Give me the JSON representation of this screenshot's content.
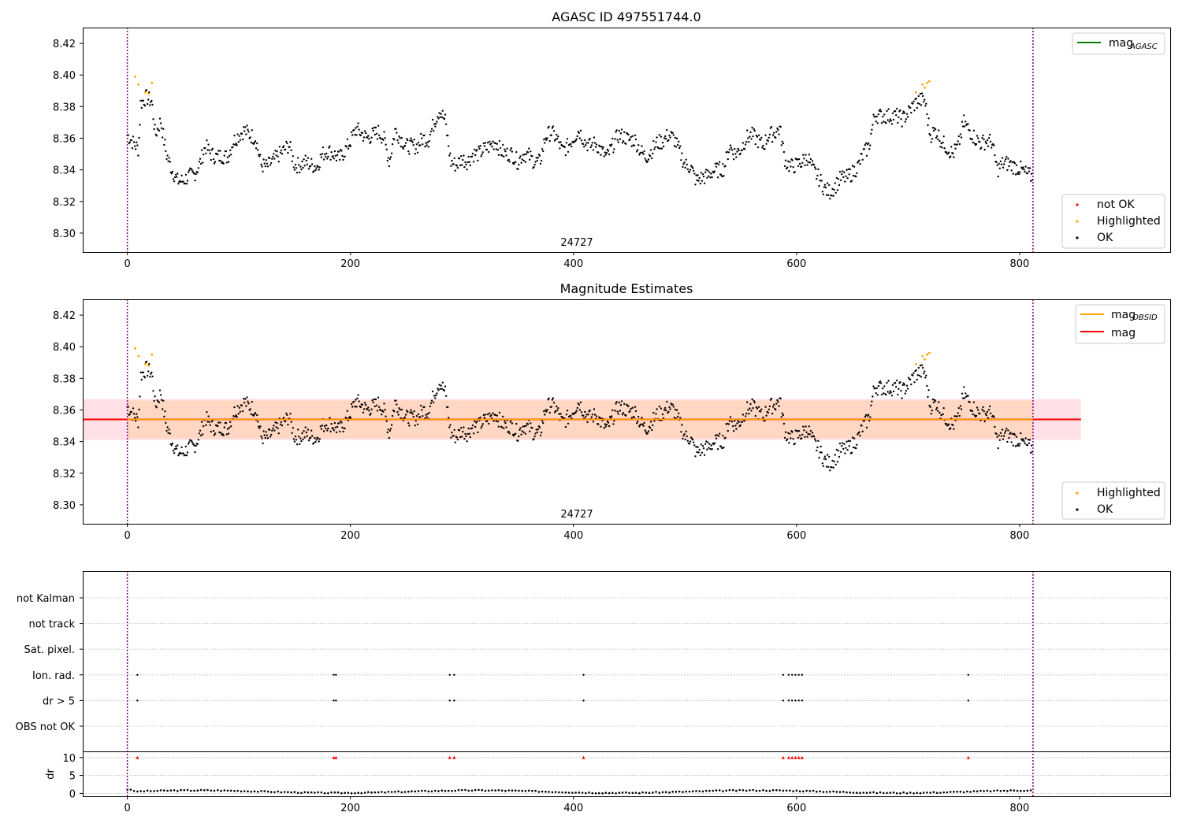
{
  "chart_data": [
    {
      "type": "scatter",
      "title": "AGASC ID 497551744.0",
      "xlim": [
        -40,
        935
      ],
      "ylim": [
        8.288,
        8.43
      ],
      "xticks": [
        0,
        200,
        400,
        600,
        800
      ],
      "yticks": [
        8.3,
        8.32,
        8.34,
        8.36,
        8.38,
        8.4,
        8.42
      ],
      "vlines": [
        0,
        812
      ],
      "annotations": [
        {
          "text": "24727",
          "x": 406
        }
      ],
      "legend_lines": [
        {
          "name": "mag",
          "sub": "AGASC",
          "color": "#008000"
        }
      ],
      "legend_points": [
        {
          "name": "not OK",
          "color": "#ff0000"
        },
        {
          "name": "Highlighted",
          "color": "#ffa500"
        },
        {
          "name": "OK",
          "color": "#000000"
        }
      ],
      "highlighted": [
        [
          7,
          8.399
        ],
        [
          10,
          8.394
        ],
        [
          16,
          8.389
        ],
        [
          19,
          8.388
        ],
        [
          22,
          8.395
        ],
        [
          707,
          8.389
        ],
        [
          713,
          8.394
        ],
        [
          715,
          8.392
        ],
        [
          717,
          8.395
        ],
        [
          719,
          8.396
        ]
      ],
      "ok_series": [
        [
          0,
          8.362
        ],
        [
          10,
          8.353
        ],
        [
          12,
          8.382
        ],
        [
          17,
          8.386
        ],
        [
          22,
          8.383
        ],
        [
          25,
          8.362
        ],
        [
          30,
          8.371
        ],
        [
          35,
          8.35
        ],
        [
          40,
          8.34
        ],
        [
          45,
          8.333
        ],
        [
          50,
          8.333
        ],
        [
          55,
          8.336
        ],
        [
          60,
          8.337
        ],
        [
          65,
          8.344
        ],
        [
          70,
          8.355
        ],
        [
          75,
          8.35
        ],
        [
          80,
          8.348
        ],
        [
          85,
          8.349
        ],
        [
          90,
          8.348
        ],
        [
          95,
          8.358
        ],
        [
          100,
          8.362
        ],
        [
          105,
          8.365
        ],
        [
          110,
          8.362
        ],
        [
          115,
          8.36
        ],
        [
          120,
          8.343
        ],
        [
          125,
          8.342
        ],
        [
          130,
          8.345
        ],
        [
          135,
          8.349
        ],
        [
          140,
          8.352
        ],
        [
          145,
          8.356
        ],
        [
          150,
          8.343
        ],
        [
          155,
          8.343
        ],
        [
          160,
          8.345
        ],
        [
          165,
          8.343
        ],
        [
          170,
          8.342
        ],
        [
          175,
          8.35
        ],
        [
          180,
          8.352
        ],
        [
          185,
          8.35
        ],
        [
          190,
          8.347
        ],
        [
          195,
          8.352
        ],
        [
          200,
          8.358
        ],
        [
          205,
          8.366
        ],
        [
          210,
          8.363
        ],
        [
          215,
          8.36
        ],
        [
          220,
          8.362
        ],
        [
          225,
          8.364
        ],
        [
          230,
          8.36
        ],
        [
          235,
          8.345
        ],
        [
          240,
          8.365
        ],
        [
          245,
          8.36
        ],
        [
          250,
          8.355
        ],
        [
          255,
          8.355
        ],
        [
          260,
          8.355
        ],
        [
          265,
          8.36
        ],
        [
          270,
          8.359
        ],
        [
          275,
          8.37
        ],
        [
          280,
          8.378
        ],
        [
          285,
          8.371
        ],
        [
          290,
          8.345
        ],
        [
          295,
          8.343
        ],
        [
          300,
          8.347
        ],
        [
          305,
          8.345
        ],
        [
          310,
          8.35
        ],
        [
          315,
          8.35
        ],
        [
          320,
          8.353
        ],
        [
          325,
          8.355
        ],
        [
          330,
          8.358
        ],
        [
          335,
          8.352
        ],
        [
          340,
          8.35
        ],
        [
          345,
          8.35
        ],
        [
          350,
          8.345
        ],
        [
          355,
          8.35
        ],
        [
          360,
          8.349
        ],
        [
          365,
          8.345
        ],
        [
          370,
          8.345
        ],
        [
          375,
          8.361
        ],
        [
          380,
          8.364
        ],
        [
          385,
          8.36
        ],
        [
          390,
          8.352
        ],
        [
          395,
          8.355
        ],
        [
          400,
          8.36
        ],
        [
          405,
          8.365
        ],
        [
          410,
          8.358
        ],
        [
          415,
          8.355
        ],
        [
          420,
          8.357
        ],
        [
          425,
          8.352
        ],
        [
          430,
          8.348
        ],
        [
          435,
          8.355
        ],
        [
          440,
          8.362
        ],
        [
          445,
          8.361
        ],
        [
          450,
          8.359
        ],
        [
          455,
          8.359
        ],
        [
          460,
          8.352
        ],
        [
          465,
          8.348
        ],
        [
          470,
          8.352
        ],
        [
          475,
          8.357
        ],
        [
          480,
          8.358
        ],
        [
          485,
          8.362
        ],
        [
          490,
          8.36
        ],
        [
          495,
          8.352
        ],
        [
          500,
          8.343
        ],
        [
          505,
          8.342
        ],
        [
          510,
          8.333
        ],
        [
          515,
          8.335
        ],
        [
          520,
          8.336
        ],
        [
          525,
          8.339
        ],
        [
          530,
          8.34
        ],
        [
          535,
          8.341
        ],
        [
          540,
          8.355
        ],
        [
          545,
          8.35
        ],
        [
          550,
          8.353
        ],
        [
          555,
          8.36
        ],
        [
          560,
          8.362
        ],
        [
          565,
          8.359
        ],
        [
          570,
          8.355
        ],
        [
          575,
          8.362
        ],
        [
          580,
          8.363
        ],
        [
          585,
          8.366
        ],
        [
          590,
          8.345
        ],
        [
          595,
          8.342
        ],
        [
          600,
          8.343
        ],
        [
          605,
          8.345
        ],
        [
          610,
          8.348
        ],
        [
          615,
          8.34
        ],
        [
          620,
          8.335
        ],
        [
          625,
          8.328
        ],
        [
          630,
          8.326
        ],
        [
          635,
          8.33
        ],
        [
          640,
          8.335
        ],
        [
          645,
          8.335
        ],
        [
          650,
          8.338
        ],
        [
          655,
          8.342
        ],
        [
          660,
          8.35
        ],
        [
          665,
          8.355
        ],
        [
          670,
          8.375
        ],
        [
          675,
          8.374
        ],
        [
          680,
          8.374
        ],
        [
          685,
          8.374
        ],
        [
          690,
          8.374
        ],
        [
          695,
          8.372
        ],
        [
          700,
          8.376
        ],
        [
          705,
          8.381
        ],
        [
          710,
          8.384
        ],
        [
          715,
          8.384
        ],
        [
          720,
          8.362
        ],
        [
          725,
          8.365
        ],
        [
          730,
          8.358
        ],
        [
          735,
          8.354
        ],
        [
          740,
          8.35
        ],
        [
          745,
          8.355
        ],
        [
          750,
          8.37
        ],
        [
          755,
          8.365
        ],
        [
          760,
          8.36
        ],
        [
          765,
          8.357
        ],
        [
          770,
          8.358
        ],
        [
          775,
          8.358
        ],
        [
          780,
          8.34
        ],
        [
          785,
          8.344
        ],
        [
          790,
          8.344
        ],
        [
          795,
          8.342
        ],
        [
          800,
          8.341
        ],
        [
          805,
          8.338
        ],
        [
          810,
          8.336
        ]
      ]
    },
    {
      "type": "scatter",
      "title": "Magnitude Estimates",
      "xlim": [
        -40,
        935
      ],
      "ylim": [
        8.288,
        8.43
      ],
      "xticks": [
        0,
        200,
        400,
        600,
        800
      ],
      "yticks": [
        8.3,
        8.32,
        8.34,
        8.36,
        8.38,
        8.4,
        8.42
      ],
      "vlines": [
        0,
        812
      ],
      "annotations": [
        {
          "text": "24727",
          "x": 406
        }
      ],
      "mag_line": 8.354,
      "mag_line_range": [
        -40,
        855
      ],
      "band_outer": [
        8.341,
        8.367
      ],
      "band_inner": [
        8.342,
        8.366
      ],
      "band_inner_range": [
        0,
        812
      ],
      "legend_lines": [
        {
          "name": "mag",
          "sub": "OBSID",
          "color": "#ffa500"
        },
        {
          "name": "mag",
          "sub": "",
          "color": "#ff0000"
        }
      ],
      "legend_points": [
        {
          "name": "Highlighted",
          "color": "#ffa500"
        },
        {
          "name": "OK",
          "color": "#000000"
        }
      ]
    },
    {
      "type": "scatter",
      "xlim": [
        -40,
        935
      ],
      "xticks": [
        0,
        200,
        400,
        600,
        800
      ],
      "vlines": [
        0,
        812
      ],
      "flag_rows": [
        "not Kalman",
        "not track",
        "Sat. pixel.",
        "Ion. rad.",
        "dr > 5",
        "OBS not OK"
      ],
      "flag_points": {
        "Ion. rad.": [
          9,
          185,
          187,
          289,
          293,
          409,
          588,
          593,
          596,
          599,
          602,
          605,
          754
        ],
        "dr > 5": [
          9,
          185,
          187,
          289,
          293,
          409,
          588,
          593,
          596,
          599,
          602,
          605,
          754
        ]
      },
      "dr_ylabel": "dr",
      "dr_ylim": [
        -0.8,
        11.5
      ],
      "dr_yticks": [
        0,
        5,
        10
      ],
      "dr_outliers_x": [
        9,
        185,
        187,
        289,
        293,
        409,
        588,
        593,
        596,
        599,
        602,
        605,
        754
      ],
      "dr_outlier_color": "#ff0000",
      "dr_points_spacing": 3
    }
  ]
}
